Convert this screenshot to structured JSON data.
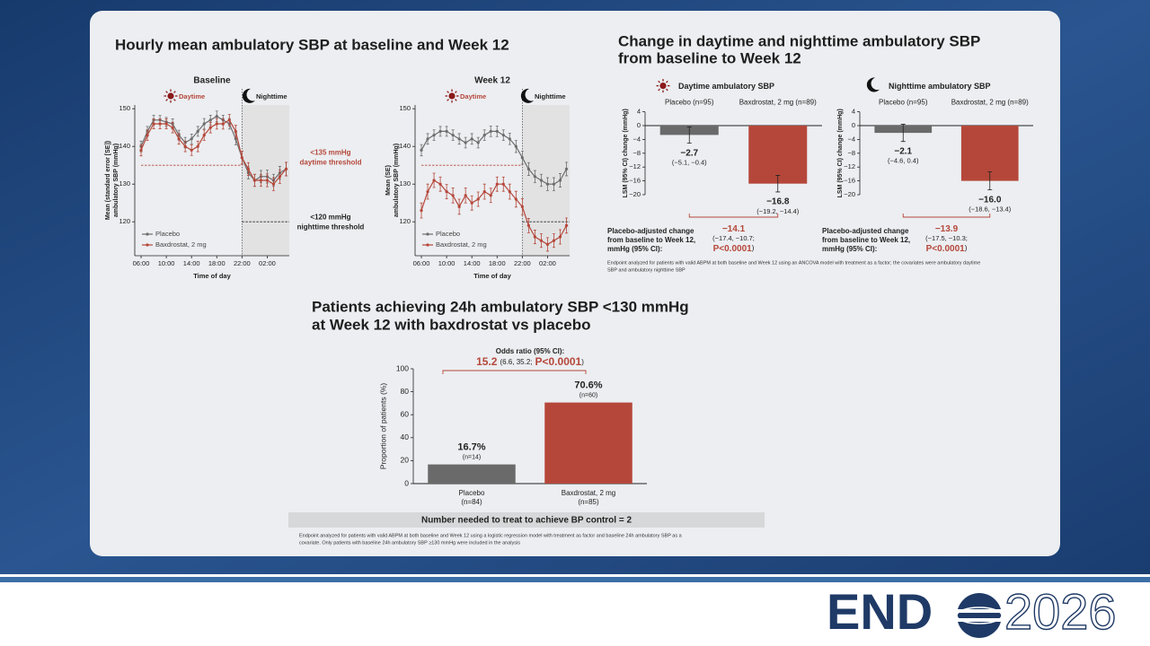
{
  "slide": {
    "left_heading": "Hourly mean ambulatory SBP at baseline and Week 12",
    "right_heading": [
      "Change in daytime and nighttime ambulatory SBP",
      "from baseline to Week 12"
    ],
    "bottom_heading": [
      "Patients achieving 24h ambulatory SBP <130 mmHg",
      "at Week 12 with baxdrostat vs placebo"
    ],
    "footnote_change": [
      "Endpoint analyzed for patients with valid ABPM at both baseline and Week 12 using an ANCOVA model with treatment as a factor; the covariates were ambulatory daytime",
      "SBP and ambulatory nighttime SBP"
    ],
    "nnt": "Number needed to treat to achieve BP control = 2",
    "footnote_proportion": [
      "Endpoint analyzed for patients with valid ABPM at both baseline and Week 12 using a logistic regression model with treatment as factor and baseline 24h ambulatory SBP as a",
      "covariate. Only patients with baseline 24h ambulatory SBP ≥130 mmHg were included in the analysis"
    ],
    "logo": [
      "END",
      "2026"
    ]
  },
  "chart_data": [
    {
      "type": "line",
      "title": "Baseline",
      "day_label": "Daytime",
      "night_label": "Nighttime",
      "ylabel": [
        "Mean (standard error [SE])",
        "ambulatory SBP (mmHg)"
      ],
      "xlabel": "Time of day",
      "x": [
        6,
        7,
        8,
        9,
        10,
        11,
        12,
        13,
        14,
        15,
        16,
        17,
        18,
        19,
        20,
        21,
        22,
        23,
        24,
        25,
        26,
        27,
        28,
        29
      ],
      "xlim": [
        5,
        29.5
      ],
      "xticks": [
        {
          "value": 6,
          "label": "06:00"
        },
        {
          "value": 10,
          "label": "10:00"
        },
        {
          "value": 14,
          "label": "14:00"
        },
        {
          "value": 18,
          "label": "18:00"
        },
        {
          "value": 22,
          "label": "22:00"
        },
        {
          "value": 26,
          "label": "02:00"
        }
      ],
      "ylim": [
        111,
        151
      ],
      "yticks": [
        120,
        130,
        140,
        150
      ],
      "night_start": 22,
      "legend": "lower left",
      "thresholds": [
        {
          "value": 135,
          "color": "#b5473a",
          "label": [
            "<135 mmHg",
            "daytime threshold"
          ]
        },
        {
          "value": 120,
          "color": "#222222",
          "label": [
            "<120 mmHg",
            "nighttime threshold"
          ]
        }
      ],
      "series": [
        {
          "name": "Placebo",
          "color": "#6d6d6d",
          "values": [
            140,
            144,
            147,
            147,
            146.5,
            146,
            143,
            141,
            142,
            144,
            146,
            147,
            148,
            147,
            146,
            142,
            137,
            133,
            131,
            132,
            132,
            131,
            133,
            134
          ],
          "errors": [
            1.4,
            1.3,
            1.3,
            1.2,
            1.2,
            1.3,
            1.3,
            1.4,
            1.3,
            1.3,
            1.4,
            1.3,
            1.4,
            1.3,
            1.4,
            1.6,
            1.7,
            1.6,
            1.6,
            1.6,
            1.7,
            1.6,
            1.7,
            1.8
          ]
        },
        {
          "name": "Baxdrostat, 2 mg",
          "color": "#b5473a",
          "values": [
            139,
            143,
            146,
            146,
            146,
            145,
            142,
            140,
            139,
            140,
            143,
            145,
            146,
            146,
            147,
            144,
            137,
            134,
            131,
            131,
            131,
            130,
            132,
            134
          ],
          "errors": [
            1.5,
            1.4,
            1.3,
            1.3,
            1.3,
            1.4,
            1.4,
            1.4,
            1.4,
            1.4,
            1.4,
            1.4,
            1.4,
            1.4,
            1.5,
            1.6,
            1.7,
            1.7,
            1.6,
            1.6,
            1.7,
            1.7,
            1.8,
            1.8
          ]
        }
      ]
    },
    {
      "type": "line",
      "title": "Week 12",
      "day_label": "Daytime",
      "night_label": "Nighttime",
      "ylabel": [
        "Mean (SE)",
        "ambulatory SBP (mmHg)"
      ],
      "xlabel": "Time of day",
      "x": [
        6,
        7,
        8,
        9,
        10,
        11,
        12,
        13,
        14,
        15,
        16,
        17,
        18,
        19,
        20,
        21,
        22,
        23,
        24,
        25,
        26,
        27,
        28,
        29
      ],
      "xlim": [
        5,
        29.5
      ],
      "xticks": [
        {
          "value": 6,
          "label": "06:00"
        },
        {
          "value": 10,
          "label": "10:00"
        },
        {
          "value": 14,
          "label": "14:00"
        },
        {
          "value": 18,
          "label": "18:00"
        },
        {
          "value": 22,
          "label": "22:00"
        },
        {
          "value": 26,
          "label": "02:00"
        }
      ],
      "ylim": [
        111,
        151
      ],
      "yticks": [
        120,
        130,
        140,
        150
      ],
      "night_start": 22,
      "legend": "lower left",
      "thresholds": [
        {
          "value": 135,
          "color": "#b5473a"
        },
        {
          "value": 120,
          "color": "#222222"
        }
      ],
      "series": [
        {
          "name": "Placebo",
          "color": "#6d6d6d",
          "values": [
            139,
            142,
            143,
            144,
            144,
            143,
            142,
            141,
            142,
            141,
            143,
            144,
            144,
            143,
            142,
            140,
            137,
            134,
            132,
            131,
            130,
            130,
            131,
            134
          ],
          "errors": [
            1.5,
            1.4,
            1.4,
            1.3,
            1.3,
            1.4,
            1.4,
            1.4,
            1.4,
            1.4,
            1.4,
            1.4,
            1.4,
            1.4,
            1.5,
            1.6,
            1.7,
            1.7,
            1.6,
            1.6,
            1.7,
            1.7,
            1.8,
            1.8
          ]
        },
        {
          "name": "Baxdrostat, 2 mg",
          "color": "#b5473a",
          "values": [
            123,
            128,
            131,
            130,
            128,
            127,
            124,
            127,
            125,
            126,
            128,
            127,
            130,
            130,
            128,
            126,
            124,
            119,
            116,
            115,
            114,
            115,
            116,
            119
          ],
          "errors": [
            2.0,
            2.0,
            1.9,
            1.9,
            1.9,
            2.0,
            2.0,
            2.0,
            1.9,
            1.9,
            2.0,
            1.9,
            1.9,
            1.9,
            2.0,
            2.1,
            2.1,
            1.9,
            1.8,
            1.8,
            1.8,
            1.8,
            1.9,
            2.0
          ]
        }
      ]
    },
    {
      "type": "bar",
      "title": "Daytime ambulatory SBP",
      "icon": "sun",
      "ylabel": "LSM (95% CI) change (mmHg)",
      "categories": [
        "Placebo (n=95)",
        "Baxdrostat, 2 mg (n=89)"
      ],
      "values": [
        -2.7,
        -16.8
      ],
      "value_labels": [
        "−2.7",
        "−16.8"
      ],
      "ci": [
        [
          -5.1,
          -0.4
        ],
        [
          -19.2,
          -14.4
        ]
      ],
      "ci_labels": [
        "(−5.1, −0.4)",
        "(−19.2, −14.4)"
      ],
      "colors": [
        "#6a6a6a",
        "#b5473a"
      ],
      "ylim": [
        -20,
        4
      ],
      "yticks": [
        4,
        0,
        {
          "value": -4,
          "label": "−4"
        },
        {
          "value": -8,
          "label": "−8"
        },
        {
          "value": -12,
          "label": "−12"
        },
        {
          "value": -16,
          "label": "−16"
        },
        {
          "value": -20,
          "label": "−20"
        }
      ],
      "adjusted": {
        "label": [
          "Placebo-adjusted change",
          "from baseline to Week 12,",
          "mmHg (95% CI):"
        ],
        "value_label": "−14.1",
        "ci_label": "(−17.4, −10.7;",
        "p": "P<0.0001",
        "close": ")"
      }
    },
    {
      "type": "bar",
      "title": "Nighttime ambulatory SBP",
      "icon": "moon",
      "ylabel": "LSM (95% CI) change (mmHg)",
      "categories": [
        "Placebo (n=95)",
        "Baxdrostat, 2 mg (n=89)"
      ],
      "values": [
        -2.1,
        -16.0
      ],
      "value_labels": [
        "−2.1",
        "−16.0"
      ],
      "ci": [
        [
          -4.6,
          0.4
        ],
        [
          -18.6,
          -13.4
        ]
      ],
      "ci_labels": [
        "(−4.6, 0.4)",
        "(−18.6, −13.4)"
      ],
      "colors": [
        "#6a6a6a",
        "#b5473a"
      ],
      "ylim": [
        -20,
        4
      ],
      "yticks": [
        4,
        0,
        {
          "value": -4,
          "label": "−4"
        },
        {
          "value": -8,
          "label": "−8"
        },
        {
          "value": -12,
          "label": "−12"
        },
        {
          "value": -16,
          "label": "−16"
        },
        {
          "value": -20,
          "label": "−20"
        }
      ],
      "adjusted": {
        "label": [
          "Placebo-adjusted change",
          "from baseline to Week 12,",
          "mmHg (95% CI):"
        ],
        "value_label": "−13.9",
        "ci_label": "(−17.5, −10.3;",
        "p": "P<0.0001",
        "close": ")"
      }
    },
    {
      "type": "bar",
      "ylabel": "Proportion of patients (%)",
      "categories": [
        "Placebo",
        "Baxdrostat, 2 mg"
      ],
      "category_n": [
        "(n=84)",
        "(n=85)"
      ],
      "values": [
        16.7,
        70.6
      ],
      "value_labels": [
        "16.7%",
        "70.6%"
      ],
      "n_labels": [
        "(n=14)",
        "(n=60)"
      ],
      "colors": [
        "#6a6a6a",
        "#b5473a"
      ],
      "ylim": [
        0,
        100
      ],
      "yticks": [
        0,
        20,
        40,
        60,
        80,
        100
      ],
      "odds": {
        "label": "Odds ratio (95% CI):",
        "value_label": "15.2",
        "ci_label": "(6.6, 35.2;",
        "p": "P<0.0001",
        "close": ")"
      }
    }
  ]
}
